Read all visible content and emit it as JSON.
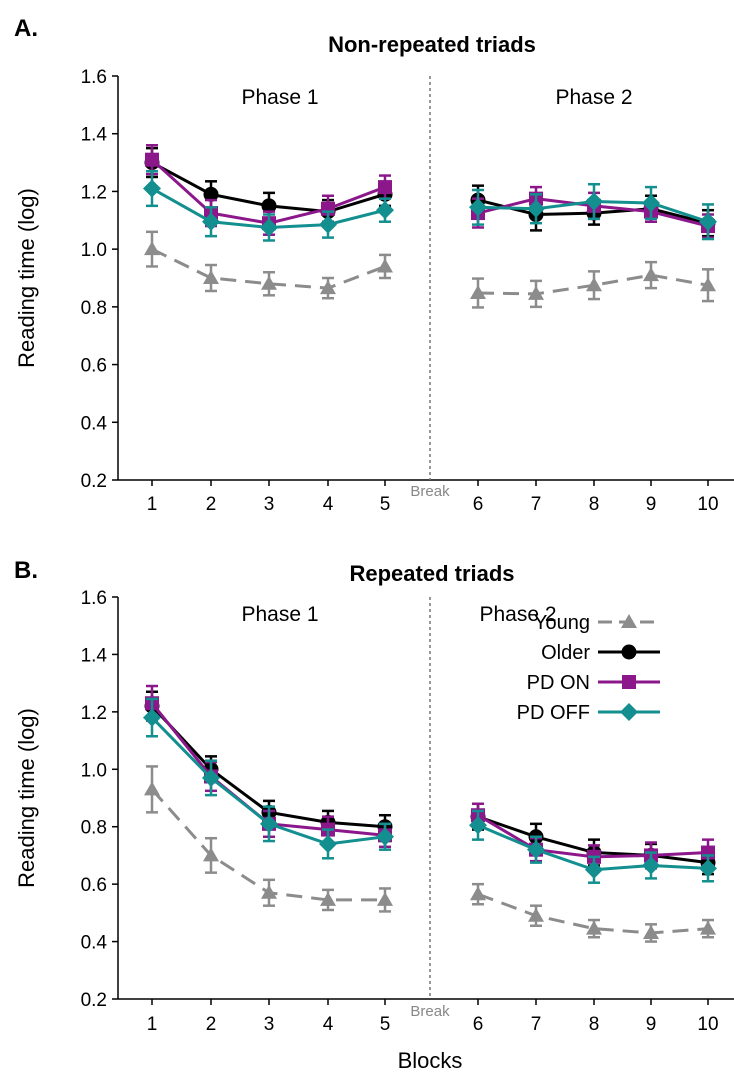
{
  "figure": {
    "xlabel": "Blocks"
  },
  "chart_data": [
    {
      "panel": "A.",
      "type": "line",
      "title": "Non-repeated triads",
      "ylabel": "Reading time (log)",
      "ylim": [
        0.2,
        1.6
      ],
      "yticks": [
        "0.2",
        "0.4",
        "0.6",
        "0.8",
        "1.0",
        "1.2",
        "1.4",
        "1.6"
      ],
      "xticks": [
        "1",
        "2",
        "3",
        "4",
        "5",
        "6",
        "7",
        "8",
        "9",
        "10"
      ],
      "break_label": "Break",
      "phase_labels": [
        "Phase 1",
        "Phase 2"
      ],
      "series": [
        {
          "name": "Young",
          "color": "#8c8c8c",
          "marker": "triangle",
          "dashed": true,
          "values": [
            1.0,
            0.9,
            0.88,
            0.865,
            0.94,
            0.848,
            0.845,
            0.875,
            0.91,
            0.875
          ],
          "errors": [
            0.06,
            0.045,
            0.04,
            0.035,
            0.04,
            0.05,
            0.045,
            0.048,
            0.045,
            0.055
          ]
        },
        {
          "name": "Older",
          "color": "#000000",
          "marker": "circle",
          "dashed": false,
          "values": [
            1.3,
            1.19,
            1.15,
            1.13,
            1.19,
            1.17,
            1.12,
            1.125,
            1.14,
            1.09
          ],
          "errors": [
            0.05,
            0.045,
            0.045,
            0.04,
            0.04,
            0.05,
            0.055,
            0.04,
            0.045,
            0.045
          ]
        },
        {
          "name": "PD ON",
          "color": "#8b178b",
          "marker": "square",
          "dashed": false,
          "values": [
            1.31,
            1.125,
            1.09,
            1.14,
            1.215,
            1.125,
            1.175,
            1.15,
            1.13,
            1.08
          ],
          "errors": [
            0.05,
            0.045,
            0.04,
            0.045,
            0.04,
            0.05,
            0.04,
            0.045,
            0.035,
            0.04
          ]
        },
        {
          "name": "PD OFF",
          "color": "#138f8f",
          "marker": "diamond",
          "dashed": false,
          "values": [
            1.21,
            1.095,
            1.075,
            1.085,
            1.135,
            1.145,
            1.14,
            1.165,
            1.16,
            1.095
          ],
          "errors": [
            0.06,
            0.05,
            0.045,
            0.045,
            0.04,
            0.06,
            0.05,
            0.06,
            0.055,
            0.06
          ]
        }
      ]
    },
    {
      "panel": "B.",
      "type": "line",
      "title": "Repeated triads",
      "ylabel": "Reading time (log)",
      "ylim": [
        0.2,
        1.6
      ],
      "yticks": [
        "0.2",
        "0.4",
        "0.6",
        "0.8",
        "1.0",
        "1.2",
        "1.4",
        "1.6"
      ],
      "xticks": [
        "1",
        "2",
        "3",
        "4",
        "5",
        "6",
        "7",
        "8",
        "9",
        "10"
      ],
      "break_label": "Break",
      "phase_labels": [
        "Phase 1",
        "Phase 2"
      ],
      "legend_position": "top-right",
      "series": [
        {
          "name": "Young",
          "color": "#8c8c8c",
          "marker": "triangle",
          "dashed": true,
          "values": [
            0.93,
            0.7,
            0.57,
            0.545,
            0.545,
            0.565,
            0.49,
            0.445,
            0.43,
            0.445
          ],
          "errors": [
            0.08,
            0.06,
            0.045,
            0.035,
            0.04,
            0.035,
            0.035,
            0.03,
            0.03,
            0.03
          ]
        },
        {
          "name": "Older",
          "color": "#000000",
          "marker": "circle",
          "dashed": false,
          "values": [
            1.22,
            1.0,
            0.85,
            0.815,
            0.8,
            0.835,
            0.765,
            0.71,
            0.7,
            0.675
          ],
          "errors": [
            0.05,
            0.045,
            0.04,
            0.04,
            0.04,
            0.045,
            0.045,
            0.045,
            0.04,
            0.04
          ]
        },
        {
          "name": "PD ON",
          "color": "#8b178b",
          "marker": "square",
          "dashed": false,
          "values": [
            1.23,
            0.975,
            0.81,
            0.79,
            0.77,
            0.84,
            0.72,
            0.695,
            0.7,
            0.71
          ],
          "errors": [
            0.06,
            0.05,
            0.045,
            0.045,
            0.04,
            0.04,
            0.04,
            0.04,
            0.045,
            0.045
          ]
        },
        {
          "name": "PD OFF",
          "color": "#138f8f",
          "marker": "diamond",
          "dashed": false,
          "values": [
            1.18,
            0.97,
            0.81,
            0.74,
            0.765,
            0.805,
            0.72,
            0.65,
            0.665,
            0.655
          ],
          "errors": [
            0.065,
            0.06,
            0.06,
            0.05,
            0.045,
            0.05,
            0.045,
            0.045,
            0.045,
            0.045
          ]
        }
      ]
    }
  ]
}
